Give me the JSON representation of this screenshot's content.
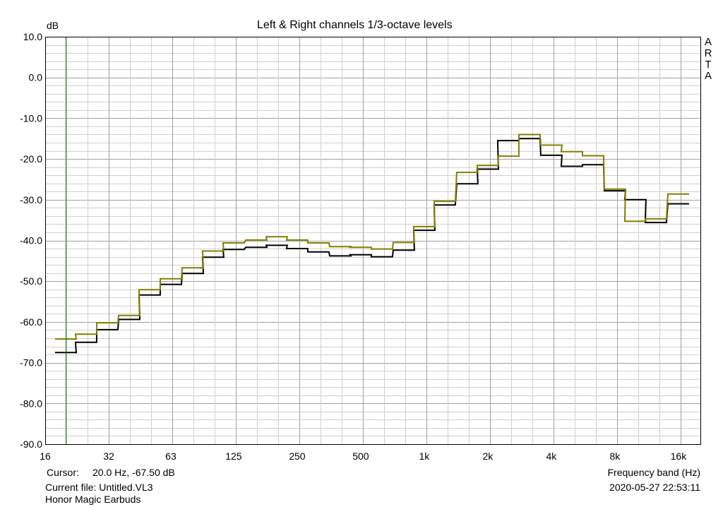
{
  "chart_data": {
    "type": "line",
    "title": "Left & Right channels 1/3-octave levels",
    "ylabel": "dB",
    "xlabel": "Frequency band (Hz)",
    "ylim": [
      -90,
      10
    ],
    "yticks": [
      10,
      0,
      -10,
      -20,
      -30,
      -40,
      -50,
      -60,
      -70,
      -80,
      -90
    ],
    "ytick_labels": [
      "10.0",
      "0.0",
      "-10.0",
      "-20.0",
      "-30.0",
      "-40.0",
      "-50.0",
      "-60.0",
      "-70.0",
      "-80.0",
      "-90.0"
    ],
    "xscale": "log2",
    "xlim_hz": [
      16,
      22000
    ],
    "xtick_labels": [
      "16",
      "32",
      "63",
      "125",
      "250",
      "500",
      "1k",
      "2k",
      "4k",
      "8k",
      "16k"
    ],
    "xtick_hz": [
      16,
      32,
      63,
      125,
      250,
      500,
      1000,
      2000,
      4000,
      8000,
      16000
    ],
    "grid": true,
    "bands_hz": [
      20,
      25,
      31.5,
      40,
      50,
      63,
      80,
      100,
      125,
      160,
      200,
      250,
      315,
      400,
      500,
      630,
      800,
      1000,
      1250,
      1600,
      2000,
      2500,
      3150,
      4000,
      5000,
      6300,
      8000,
      10000,
      12500,
      16000
    ],
    "series": [
      {
        "color": "#000000",
        "values": [
          -67.5,
          -65.0,
          -61.9,
          -59.4,
          -53.4,
          -50.8,
          -48.1,
          -44.1,
          -42.2,
          -41.7,
          -41.2,
          -42.0,
          -42.8,
          -43.8,
          -43.5,
          -44.0,
          -42.4,
          -37.5,
          -31.3,
          -26.1,
          -22.5,
          -15.5,
          -15.0,
          -19.1,
          -21.8,
          -21.4,
          -27.8,
          -30.0,
          -35.6,
          -31.0
        ]
      },
      {
        "color": "#808000",
        "values": [
          -64.2,
          -63.0,
          -60.2,
          -58.4,
          -52.1,
          -49.4,
          -46.7,
          -42.6,
          -40.6,
          -39.9,
          -39.1,
          -39.9,
          -40.6,
          -41.5,
          -41.7,
          -42.1,
          -40.5,
          -36.6,
          -30.4,
          -23.3,
          -21.6,
          -19.3,
          -14.0,
          -16.6,
          -18.2,
          -19.2,
          -27.4,
          -35.3,
          -34.7,
          -28.6
        ]
      }
    ],
    "cursor_hz": 20.0
  },
  "footer": {
    "cursor_label": "Cursor:",
    "cursor_value": "20.0 Hz, -67.50 dB",
    "current_file": "Current file: Untitled.VL3",
    "device": "Honor Magic Earbuds",
    "datetime": "2020-05-27  22:53:11"
  },
  "brand": [
    "A",
    "R",
    "T",
    "A"
  ],
  "colors": {
    "grid_major": "#a0a0a0",
    "grid_minor": "#d0d0d0",
    "cursor": "#008000",
    "frame": "#000000"
  }
}
